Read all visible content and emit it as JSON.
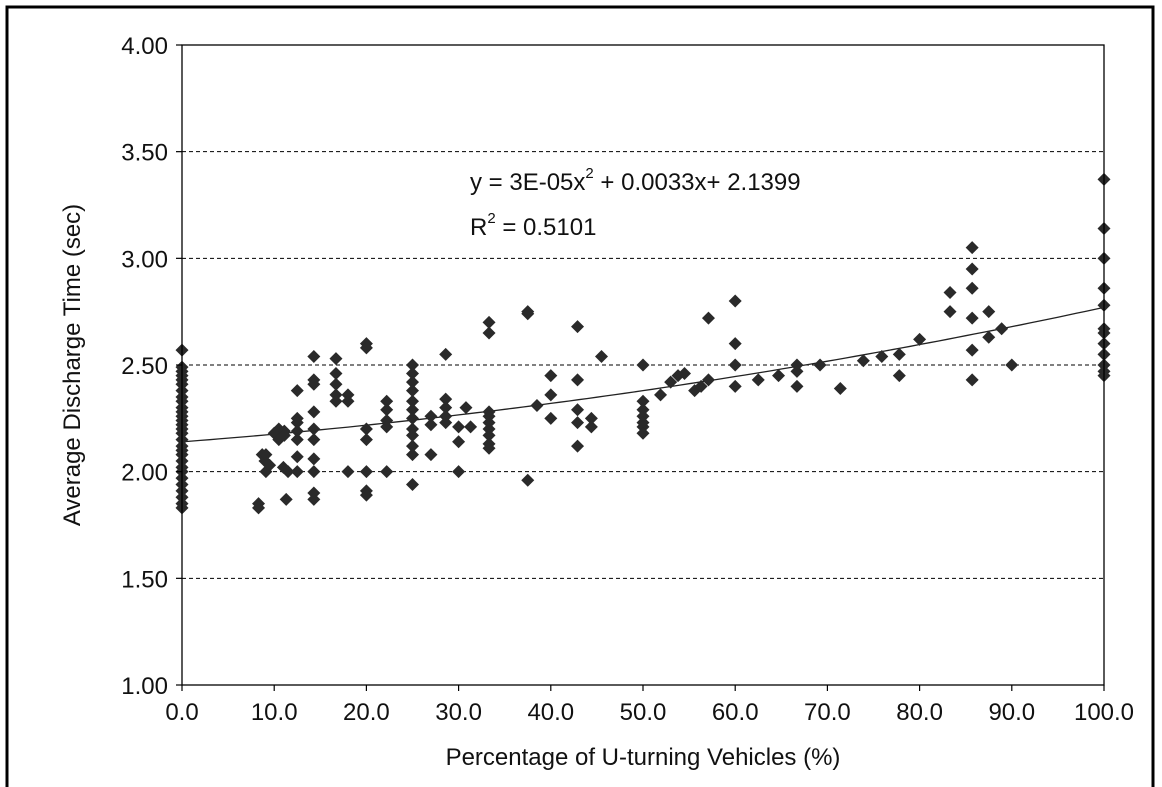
{
  "chart_data": {
    "type": "scatter",
    "xlabel": "Percentage of U-turning Vehicles (%)",
    "ylabel": "Average Discharge Time (sec)",
    "xlim": [
      0,
      100
    ],
    "ylim": [
      1.0,
      4.0
    ],
    "x_ticks": [
      "0.0",
      "10.0",
      "20.0",
      "30.0",
      "40.0",
      "50.0",
      "60.0",
      "70.0",
      "80.0",
      "90.0",
      "100.0"
    ],
    "y_ticks": [
      "1.00",
      "1.50",
      "2.00",
      "2.50",
      "3.00",
      "3.50",
      "4.00"
    ],
    "grid": "horizontal-dashed",
    "legend": "none",
    "marker": "diamond",
    "marker_color": "#2a2a2a",
    "equation": {
      "prefix": "y = 3E-05x",
      "exp": "2",
      "suffix": " + 0.0033x+ 2.1399"
    },
    "r_squared": {
      "prefix": "R",
      "exp": "2",
      "suffix": " = 0.5101"
    },
    "trendline": {
      "type": "polynomial",
      "a": 3e-05,
      "b": 0.0033,
      "c": 2.1399
    },
    "points": [
      [
        0,
        2.57
      ],
      [
        0,
        2.49
      ],
      [
        0,
        2.47
      ],
      [
        0,
        2.45
      ],
      [
        0,
        2.43
      ],
      [
        0,
        2.41
      ],
      [
        0,
        2.38
      ],
      [
        0,
        2.35
      ],
      [
        0,
        2.33
      ],
      [
        0,
        2.3
      ],
      [
        0,
        2.28
      ],
      [
        0,
        2.26
      ],
      [
        0,
        2.24
      ],
      [
        0,
        2.22
      ],
      [
        0,
        2.2
      ],
      [
        0,
        2.18
      ],
      [
        0,
        2.15
      ],
      [
        0,
        2.12
      ],
      [
        0,
        2.1
      ],
      [
        0,
        2.08
      ],
      [
        0,
        2.05
      ],
      [
        0,
        2.02
      ],
      [
        0,
        2.0
      ],
      [
        0,
        1.97
      ],
      [
        0,
        1.94
      ],
      [
        0,
        1.91
      ],
      [
        0,
        1.88
      ],
      [
        0,
        1.85
      ],
      [
        0,
        1.83
      ],
      [
        8.3,
        1.85
      ],
      [
        8.3,
        1.83
      ],
      [
        8.7,
        2.08
      ],
      [
        9,
        2.05
      ],
      [
        9.1,
        2.0
      ],
      [
        9.5,
        2.03
      ],
      [
        9.1,
        2.08
      ],
      [
        10,
        2.18
      ],
      [
        10.5,
        2.2
      ],
      [
        10.5,
        2.15
      ],
      [
        11,
        2.02
      ],
      [
        11.1,
        2.19
      ],
      [
        11.1,
        2.17
      ],
      [
        11.3,
        1.87
      ],
      [
        11.5,
        2.0
      ],
      [
        12.5,
        2.38
      ],
      [
        12.5,
        2.25
      ],
      [
        12.5,
        2.23
      ],
      [
        12.5,
        2.19
      ],
      [
        12.5,
        2.15
      ],
      [
        12.5,
        2.07
      ],
      [
        12.5,
        2.0
      ],
      [
        14.3,
        2.54
      ],
      [
        14.3,
        2.43
      ],
      [
        14.3,
        2.41
      ],
      [
        14.3,
        2.28
      ],
      [
        14.3,
        2.2
      ],
      [
        14.3,
        2.15
      ],
      [
        14.3,
        2.06
      ],
      [
        14.3,
        2.0
      ],
      [
        14.3,
        1.9
      ],
      [
        14.3,
        1.87
      ],
      [
        16.7,
        2.53
      ],
      [
        16.7,
        2.46
      ],
      [
        16.7,
        2.41
      ],
      [
        16.7,
        2.36
      ],
      [
        16.7,
        2.33
      ],
      [
        18,
        2.36
      ],
      [
        18,
        2.33
      ],
      [
        18,
        2.0
      ],
      [
        20,
        2.6
      ],
      [
        20,
        2.58
      ],
      [
        20,
        2.2
      ],
      [
        20,
        2.15
      ],
      [
        20,
        2.0
      ],
      [
        20,
        1.91
      ],
      [
        20,
        1.89
      ],
      [
        22.2,
        2.33
      ],
      [
        22.2,
        2.29
      ],
      [
        22.2,
        2.24
      ],
      [
        22.2,
        2.21
      ],
      [
        22.2,
        2.0
      ],
      [
        25,
        2.5
      ],
      [
        25,
        2.46
      ],
      [
        25,
        2.42
      ],
      [
        25,
        2.38
      ],
      [
        25,
        2.33
      ],
      [
        25,
        2.29
      ],
      [
        25,
        2.25
      ],
      [
        25,
        2.2
      ],
      [
        25,
        2.17
      ],
      [
        25,
        2.12
      ],
      [
        25,
        2.08
      ],
      [
        25,
        1.94
      ],
      [
        27,
        2.26
      ],
      [
        27,
        2.22
      ],
      [
        27,
        2.08
      ],
      [
        28.6,
        2.55
      ],
      [
        28.6,
        2.34
      ],
      [
        28.6,
        2.3
      ],
      [
        28.6,
        2.26
      ],
      [
        28.6,
        2.23
      ],
      [
        30,
        2.21
      ],
      [
        30,
        2.14
      ],
      [
        30,
        2.0
      ],
      [
        30.8,
        2.3
      ],
      [
        31.3,
        2.21
      ],
      [
        33.3,
        2.7
      ],
      [
        33.3,
        2.65
      ],
      [
        33.3,
        2.28
      ],
      [
        33.3,
        2.26
      ],
      [
        33.3,
        2.23
      ],
      [
        33.3,
        2.2
      ],
      [
        33.3,
        2.17
      ],
      [
        33.3,
        2.13
      ],
      [
        33.3,
        2.11
      ],
      [
        37.5,
        2.75
      ],
      [
        37.5,
        2.74
      ],
      [
        37.5,
        1.96
      ],
      [
        38.5,
        2.31
      ],
      [
        40,
        2.45
      ],
      [
        40,
        2.36
      ],
      [
        40,
        2.25
      ],
      [
        42.9,
        2.68
      ],
      [
        42.9,
        2.43
      ],
      [
        42.9,
        2.29
      ],
      [
        42.9,
        2.23
      ],
      [
        42.9,
        2.12
      ],
      [
        44.4,
        2.25
      ],
      [
        44.4,
        2.21
      ],
      [
        45.5,
        2.54
      ],
      [
        50,
        2.5
      ],
      [
        50,
        2.33
      ],
      [
        50,
        2.29
      ],
      [
        50,
        2.26
      ],
      [
        50,
        2.23
      ],
      [
        50,
        2.21
      ],
      [
        50,
        2.18
      ],
      [
        51.9,
        2.36
      ],
      [
        53,
        2.42
      ],
      [
        53.8,
        2.45
      ],
      [
        54.5,
        2.46
      ],
      [
        55.6,
        2.38
      ],
      [
        56.3,
        2.4
      ],
      [
        57.1,
        2.72
      ],
      [
        57.1,
        2.43
      ],
      [
        60,
        2.8
      ],
      [
        60,
        2.6
      ],
      [
        60,
        2.5
      ],
      [
        60,
        2.4
      ],
      [
        62.5,
        2.43
      ],
      [
        64.7,
        2.45
      ],
      [
        66.7,
        2.5
      ],
      [
        66.7,
        2.47
      ],
      [
        66.7,
        2.4
      ],
      [
        69.2,
        2.5
      ],
      [
        71.4,
        2.39
      ],
      [
        73.9,
        2.52
      ],
      [
        75.9,
        2.54
      ],
      [
        77.8,
        2.55
      ],
      [
        77.8,
        2.45
      ],
      [
        80,
        2.62
      ],
      [
        83.3,
        2.84
      ],
      [
        83.3,
        2.75
      ],
      [
        85.7,
        3.05
      ],
      [
        85.7,
        2.95
      ],
      [
        85.7,
        2.86
      ],
      [
        85.7,
        2.72
      ],
      [
        85.7,
        2.57
      ],
      [
        85.7,
        2.43
      ],
      [
        87.5,
        2.75
      ],
      [
        87.5,
        2.63
      ],
      [
        88.9,
        2.67
      ],
      [
        90,
        2.5
      ],
      [
        100,
        3.37
      ],
      [
        100,
        3.14
      ],
      [
        100,
        3.0
      ],
      [
        100,
        2.86
      ],
      [
        100,
        2.78
      ],
      [
        100,
        2.67
      ],
      [
        100,
        2.65
      ],
      [
        100,
        2.6
      ],
      [
        100,
        2.55
      ],
      [
        100,
        2.5
      ],
      [
        100,
        2.47
      ],
      [
        100,
        2.45
      ]
    ]
  }
}
